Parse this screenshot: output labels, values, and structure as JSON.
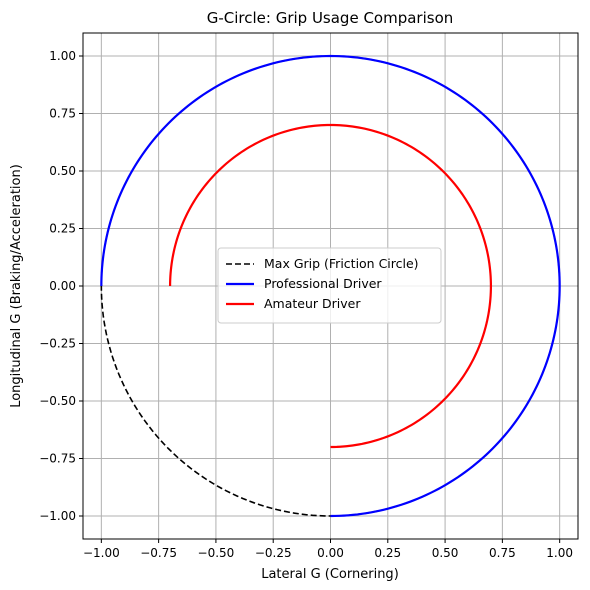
{
  "chart_data": {
    "type": "line",
    "title": "G-Circle: Grip Usage Comparison",
    "xlabel": "Lateral G (Cornering)",
    "ylabel": "Longitudinal G (Braking/Acceleration)",
    "xlim": [
      -1.08,
      1.08
    ],
    "ylim": [
      -1.1,
      1.1
    ],
    "xticks": [
      -1.0,
      -0.75,
      -0.5,
      -0.25,
      0.0,
      0.25,
      0.5,
      0.75,
      1.0
    ],
    "xtick_labels": [
      "−1.00",
      "−0.75",
      "−0.50",
      "−0.25",
      "0.00",
      "0.25",
      "0.50",
      "0.75",
      "1.00"
    ],
    "yticks": [
      -1.0,
      -0.75,
      -0.5,
      -0.25,
      0.0,
      0.25,
      0.5,
      0.75,
      1.0
    ],
    "ytick_labels": [
      "−1.00",
      "−0.75",
      "−0.50",
      "−0.25",
      "0.00",
      "0.25",
      "0.50",
      "0.75",
      "1.00"
    ],
    "grid": true,
    "legend_position": "center",
    "series": [
      {
        "name": "Max Grip (Friction Circle)",
        "kind": "arc",
        "radius": 1.0,
        "start_angle_deg": 0,
        "end_angle_deg": 360,
        "color": "#000000",
        "style": "dashed"
      },
      {
        "name": "Professional Driver",
        "kind": "arc",
        "radius": 1.0,
        "start_angle_deg": 270,
        "end_angle_deg": 540,
        "color": "#0000ff",
        "style": "solid"
      },
      {
        "name": "Amateur Driver",
        "kind": "arc",
        "radius": 0.7,
        "start_angle_deg": 270,
        "end_angle_deg": 540,
        "color": "#ff0000",
        "style": "solid"
      }
    ]
  }
}
